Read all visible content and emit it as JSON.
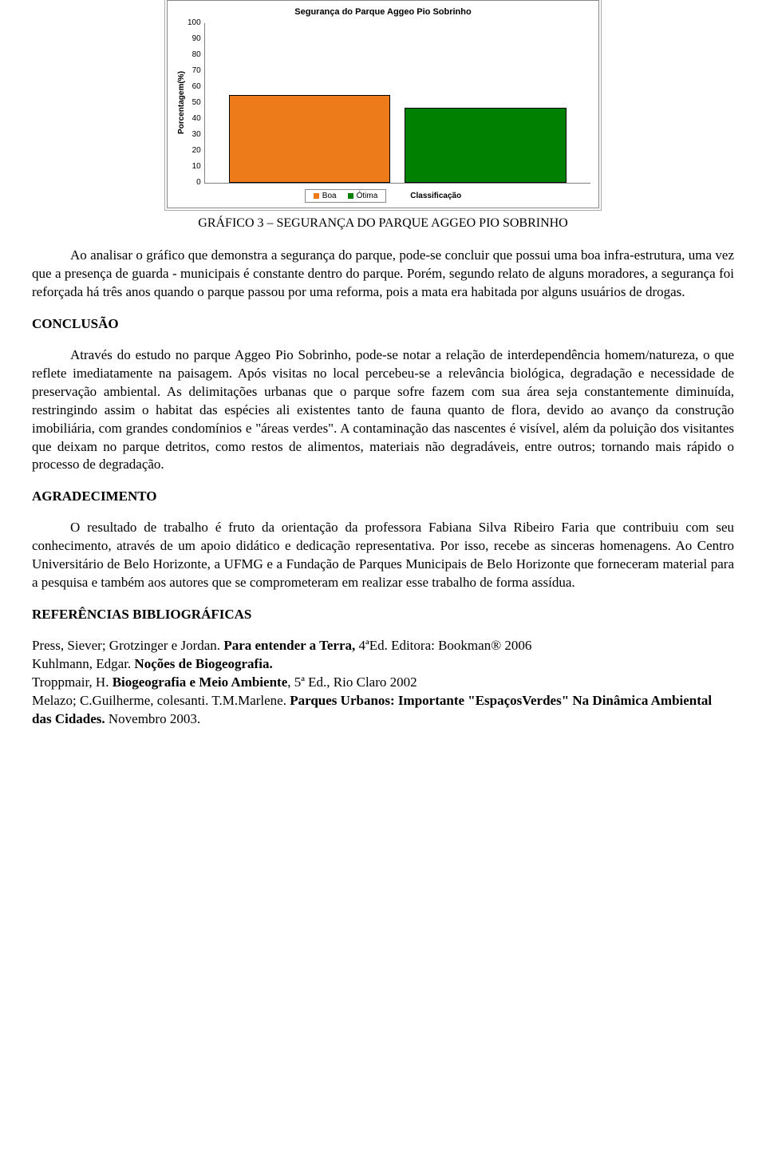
{
  "chart": {
    "type": "bar",
    "title": "Segurança do Parque Aggeo Pio Sobrinho",
    "ylabel": "Porcentagem(%)",
    "xlabel": "Classificação",
    "ylim": [
      0,
      100
    ],
    "yticks": [
      100,
      90,
      80,
      70,
      60,
      50,
      40,
      30,
      20,
      10,
      0
    ],
    "ytick_labels": [
      "100",
      "90",
      "80",
      "70",
      "60",
      "50",
      "40",
      "30",
      "20",
      "10",
      "0"
    ],
    "categories": [
      "Boa",
      "Ótima"
    ],
    "values": [
      54,
      46
    ],
    "bar_colors": [
      "#ed7b1a",
      "#008000"
    ],
    "bar_border": "#000000",
    "background_color": "#ffffff",
    "axis_color": "#808080",
    "legend_items": [
      {
        "label": "Boa",
        "color": "#ed7b1a"
      },
      {
        "label": "Ótima",
        "color": "#008000"
      }
    ],
    "title_fontsize": 11,
    "tick_fontsize": 10,
    "label_fontsize": 10
  },
  "caption": "GRÁFICO 3 – SEGURANÇA DO PARQUE AGGEO PIO SOBRINHO",
  "paragraphs": {
    "p1": "Ao analisar o gráfico que demonstra a segurança do parque, pode-se concluir que possui uma boa infra-estrutura, uma vez que a presença de guarda - municipais é constante dentro do parque. Porém, segundo relato de alguns moradores, a segurança foi reforçada há três anos quando o parque passou por uma reforma, pois a mata era habitada por alguns usuários de drogas.",
    "h_conclusao": "CONCLUSÃO",
    "p2": "Através do estudo no parque Aggeo Pio Sobrinho, pode-se notar a relação de interdependência homem/natureza, o que reflete imediatamente na paisagem. Após visitas no local percebeu-se a relevância biológica, degradação e necessidade de preservação ambiental. As delimitações urbanas que o parque sofre fazem com sua área seja constantemente diminuída, restringindo assim o habitat das espécies ali existentes tanto de fauna quanto de flora, devido ao avanço da construção imobiliária, com grandes condomínios e \"áreas verdes\". A contaminação das nascentes é visível, além da poluição dos visitantes que deixam no parque detritos, como restos de alimentos, materiais não degradáveis, entre outros; tornando mais rápido o processo de degradação.",
    "h_agradecimento": "AGRADECIMENTO",
    "p3": "O resultado de trabalho é fruto da orientação da professora Fabiana Silva Ribeiro Faria que contribuiu com seu conhecimento, através de um apoio didático e dedicação representativa. Por isso, recebe as sinceras homenagens. Ao Centro Universitário de Belo Horizonte, a UFMG e a Fundação de Parques Municipais de Belo Horizonte que forneceram material para a pesquisa e também aos autores que se comprometeram em realizar esse trabalho de forma assídua.",
    "h_referencias": "REFERÊNCIAS BIBLIOGRÁFICAS"
  },
  "references": {
    "r1a": "Press, Siever; Grotzinger e Jordan. ",
    "r1b": "Para entender a Terra, ",
    "r1c": "4ªEd. Editora: Bookman® 2006",
    "r2a": "Kuhlmann, Edgar. ",
    "r2b": "Noções de Biogeografia.",
    "r3a": "Troppmair, H. ",
    "r3b": "Biogeografia e Meio Ambiente",
    "r3c": ", 5ª Ed., Rio Claro 2002",
    "r4a": "Melazo; C.Guilherme, colesanti. T.M.Marlene. ",
    "r4b": "Parques Urbanos: Importante \"EspaçosVerdes\" Na Dinâmica Ambiental das Cidades.",
    "r4c": " Novembro 2003."
  }
}
